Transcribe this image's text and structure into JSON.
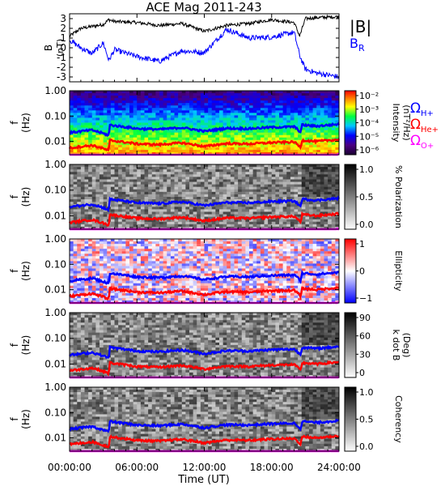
{
  "title": "ACE Mag 2011-243",
  "x_axis": {
    "label": "Time (UT)",
    "ticks": [
      "00:00:00",
      "06:00:00",
      "12:00:00",
      "18:00:00",
      "24:00:00"
    ]
  },
  "legend": {
    "b_total": "|B|",
    "b_radial": "B",
    "b_radial_sub": "R",
    "omega": "Ω",
    "h_plus": "H+",
    "he_plus": "He+",
    "o_plus": "O+"
  },
  "colors": {
    "b_total": "#000000",
    "b_radial": "#0000ff",
    "h_plus": "#0000ff",
    "he_plus": "#ff0000",
    "o_plus": "#ff00ff"
  },
  "chart_data": [
    {
      "type": "line",
      "panel": "B field",
      "ylabel": "B",
      "yunit": "(nT)",
      "ylim": [
        -3.5,
        3.5
      ],
      "y_ticks": [
        "3",
        "2",
        "1",
        "0",
        "-1",
        "-2",
        "-3"
      ],
      "x": [
        0,
        1,
        2,
        3,
        3.5,
        4,
        6,
        8,
        10,
        12,
        14,
        16,
        18,
        20,
        20.5,
        21,
        22,
        24
      ],
      "series": [
        {
          "name": "|B|",
          "values": [
            1.2,
            2.0,
            2.2,
            2.4,
            2.9,
            2.7,
            2.6,
            2.3,
            2.5,
            1.7,
            2.3,
            2.5,
            2.9,
            2.6,
            1.2,
            3.0,
            3.1,
            3.2
          ]
        },
        {
          "name": "B_R",
          "values": [
            0.8,
            0.0,
            -0.6,
            0.5,
            -1.3,
            -0.2,
            -0.9,
            -1.4,
            -0.3,
            -0.5,
            1.9,
            1.0,
            1.1,
            1.6,
            -0.8,
            -2.2,
            -2.6,
            -3.0
          ]
        }
      ]
    },
    {
      "type": "heatmap",
      "panel": "Intensity",
      "ylabel": "f",
      "yunit": "(Hz)",
      "colorbar_label": "Intensity",
      "colorbar_unit": "(nT²/Hz)",
      "colorbar_ticks": [
        "10⁻²",
        "10⁻³",
        "10⁻⁴",
        "10⁻⁵",
        "10⁻⁶"
      ],
      "colorscale": "rainbow"
    },
    {
      "type": "heatmap",
      "panel": "% Polarization",
      "ylabel": "f",
      "yunit": "(Hz)",
      "colorbar_label": "% Polarization",
      "colorbar_ticks": [
        "1.0",
        "0.5",
        "0.0"
      ],
      "colorscale": "gray"
    },
    {
      "type": "heatmap",
      "panel": "Ellipticity",
      "ylabel": "f",
      "yunit": "(Hz)",
      "colorbar_label": "Ellipticity",
      "colorbar_ticks": [
        "1",
        "0",
        "−1"
      ],
      "colorscale": "blue-white-red"
    },
    {
      "type": "heatmap",
      "panel": "k dot B",
      "ylabel": "f",
      "yunit": "(Hz)",
      "colorbar_label": "k dot B",
      "colorbar_unit": "(Deg)",
      "colorbar_ticks": [
        "90",
        "60",
        "30",
        "0"
      ],
      "colorscale": "gray"
    },
    {
      "type": "heatmap",
      "panel": "Coherency",
      "ylabel": "f",
      "yunit": "(Hz)",
      "colorbar_label": "Coherency",
      "colorbar_ticks": [
        "1.0",
        "0.5",
        "0.0"
      ],
      "colorscale": "gray"
    }
  ],
  "freq_axis": {
    "scale": "log",
    "ylim": [
      0.003,
      1.0
    ],
    "ticks": [
      "1.00",
      "0.10",
      "0.01"
    ]
  },
  "gyro_lines": {
    "x": [
      0,
      2,
      3.5,
      3.6,
      4,
      6,
      8,
      10,
      12,
      14,
      16,
      18,
      20,
      20.6,
      20.7,
      22,
      24
    ],
    "h_plus": [
      0.022,
      0.028,
      0.017,
      0.045,
      0.042,
      0.032,
      0.03,
      0.035,
      0.025,
      0.033,
      0.032,
      0.036,
      0.038,
      0.022,
      0.045,
      0.04,
      0.048
    ],
    "he_plus": [
      0.0055,
      0.007,
      0.0043,
      0.0112,
      0.0105,
      0.008,
      0.0075,
      0.0088,
      0.0063,
      0.0083,
      0.008,
      0.009,
      0.0095,
      0.0055,
      0.0112,
      0.01,
      0.012
    ],
    "o_plus": [
      0.0014,
      0.0018,
      0.0011,
      0.0028,
      0.0026,
      0.002,
      0.0019,
      0.0022,
      0.0016,
      0.0021,
      0.002,
      0.0023,
      0.0024,
      0.0014,
      0.0028,
      0.0025,
      0.003
    ]
  }
}
